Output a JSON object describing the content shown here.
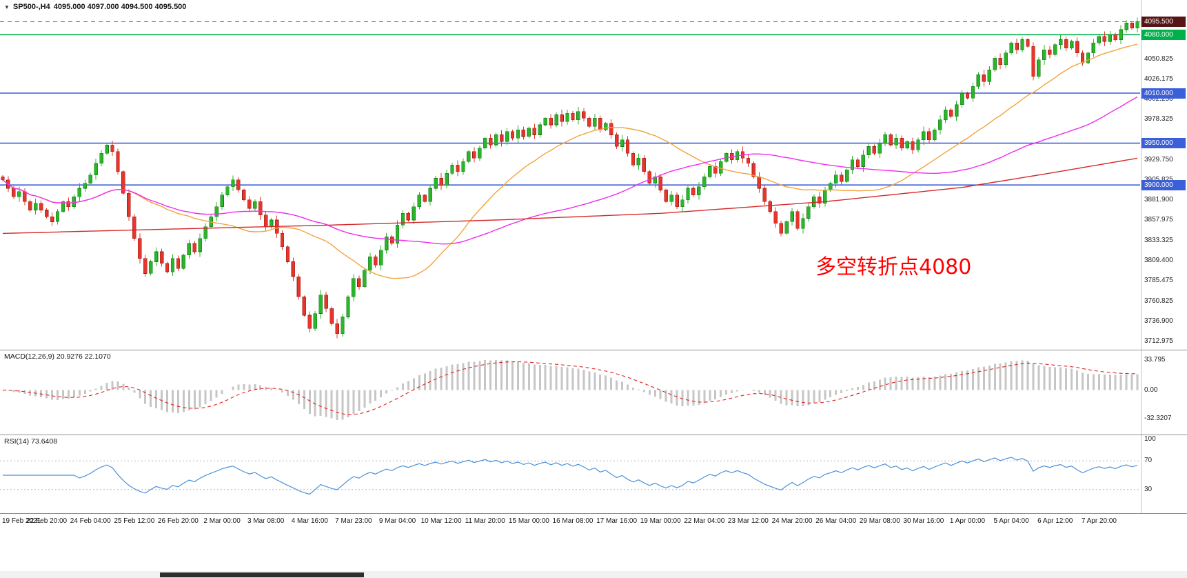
{
  "window": {
    "symbol_period": "SP500-,H4",
    "ohlc": "4095.000 4097.000 4094.500 4095.500"
  },
  "annotation": {
    "text": "多空转折点4080",
    "color": "#FF0000"
  },
  "price_axis": {
    "labels": [
      "4074.975",
      "4050.825",
      "4026.175",
      "4002.250",
      "3978.325",
      "3929.750",
      "3905.825",
      "3881.900",
      "3857.975",
      "3833.325",
      "3809.400",
      "3785.475",
      "3760.825",
      "3736.900",
      "3712.975"
    ]
  },
  "time_axis": {
    "labels": [
      "19 Feb 2021",
      "22 Feb 20:00",
      "24 Feb 04:00",
      "25 Feb 12:00",
      "26 Feb 20:00",
      "2 Mar 00:00",
      "3 Mar 08:00",
      "4 Mar 16:00",
      "7 Mar 23:00",
      "9 Mar 04:00",
      "10 Mar 12:00",
      "11 Mar 20:00",
      "15 Mar 00:00",
      "16 Mar 08:00",
      "17 Mar 16:00",
      "19 Mar 00:00",
      "22 Mar 04:00",
      "23 Mar 12:00",
      "24 Mar 20:00",
      "26 Mar 04:00",
      "29 Mar 08:00",
      "30 Mar 16:00",
      "1 Apr 00:00",
      "5 Apr 04:00",
      "6 Apr 12:00",
      "7 Apr 20:00"
    ]
  },
  "levels": [
    {
      "price": 4095.5,
      "label": "4095.500",
      "bg": "#571616",
      "line_color": "#b84a4a",
      "style": "dashed"
    },
    {
      "price": 4080.0,
      "label": "4080.000",
      "bg": "#00b14a",
      "line_color": "#00b14a",
      "style": "solid"
    },
    {
      "price": 4010.0,
      "label": "4010.000",
      "bg": "#3a5fd9",
      "line_color": "#3a5fd9",
      "style": "solid"
    },
    {
      "price": 3950.0,
      "label": "3950.000",
      "bg": "#3a5fd9",
      "line_color": "#3a5fd9",
      "style": "solid"
    },
    {
      "price": 3900.0,
      "label": "3900.000",
      "bg": "#3a5fd9",
      "line_color": "#3a5fd9",
      "style": "solid"
    }
  ],
  "macd": {
    "label": "MACD(12,26,9) 20.9276 22.1070",
    "axis_labels": [
      "33.795",
      "0.00",
      "-32.3207"
    ],
    "axis_values": [
      33.795,
      0,
      -32.3207
    ]
  },
  "rsi": {
    "label": "RSI(14) 73.6408",
    "axis_labels": [
      "100",
      "70",
      "30"
    ],
    "axis_values": [
      100,
      70,
      30
    ]
  },
  "colors": {
    "bull": "#2bb52b",
    "bull_border": "#157a15",
    "bear": "#e6352b",
    "bear_border": "#9c1f14",
    "ma_fast": "#f2a33c",
    "ma_mid": "#ee2cee",
    "ma_slow": "#d42a2a",
    "macd_hist": "#c6c6c6",
    "macd_signal": "#e02020",
    "rsi_line": "#4a90d9"
  },
  "chart_data": [
    {
      "type": "candlestick",
      "symbol": "SP500-",
      "timeframe": "H4",
      "title": "SP500-,H4 4095.000 4097.000 4094.500 4095.500",
      "ohlc_current": {
        "open": 4095.0,
        "high": 4097.0,
        "low": 4094.5,
        "close": 4095.5
      },
      "ylim": [
        3706,
        4105
      ],
      "bars_per_tick": 8,
      "open_first": 3910,
      "x_tick_labels": [
        "19 Feb 2021",
        "22 Feb 20:00",
        "24 Feb 04:00",
        "25 Feb 12:00",
        "26 Feb 20:00",
        "2 Mar 00:00",
        "3 Mar 08:00",
        "4 Mar 16:00",
        "7 Mar 23:00",
        "9 Mar 04:00",
        "10 Mar 12:00",
        "11 Mar 20:00",
        "15 Mar 00:00",
        "16 Mar 08:00",
        "17 Mar 16:00",
        "19 Mar 00:00",
        "22 Mar 04:00",
        "23 Mar 12:00",
        "24 Mar 20:00",
        "26 Mar 04:00",
        "29 Mar 08:00",
        "30 Mar 16:00",
        "1 Apr 00:00",
        "5 Apr 04:00",
        "6 Apr 12:00",
        "7 Apr 20:00"
      ],
      "closes": [
        3906,
        3896,
        3886,
        3892,
        3880,
        3870,
        3878,
        3870,
        3862,
        3856,
        3868,
        3880,
        3874,
        3886,
        3896,
        3902,
        3912,
        3926,
        3938,
        3948,
        3940,
        3916,
        3890,
        3862,
        3836,
        3812,
        3794,
        3808,
        3820,
        3806,
        3796,
        3812,
        3800,
        3816,
        3830,
        3820,
        3836,
        3850,
        3862,
        3874,
        3888,
        3898,
        3906,
        3894,
        3882,
        3872,
        3880,
        3864,
        3850,
        3858,
        3842,
        3826,
        3808,
        3790,
        3766,
        3744,
        3728,
        3746,
        3768,
        3752,
        3734,
        3722,
        3742,
        3766,
        3788,
        3778,
        3798,
        3814,
        3804,
        3822,
        3838,
        3830,
        3852,
        3866,
        3858,
        3874,
        3888,
        3880,
        3896,
        3908,
        3900,
        3914,
        3924,
        3916,
        3928,
        3940,
        3932,
        3944,
        3956,
        3948,
        3960,
        3952,
        3964,
        3956,
        3966,
        3958,
        3968,
        3960,
        3972,
        3980,
        3972,
        3984,
        3976,
        3986,
        3978,
        3988,
        3980,
        3970,
        3980,
        3966,
        3974,
        3960,
        3946,
        3954,
        3938,
        3924,
        3932,
        3916,
        3902,
        3910,
        3894,
        3880,
        3888,
        3874,
        3882,
        3896,
        3888,
        3898,
        3910,
        3922,
        3914,
        3928,
        3938,
        3930,
        3940,
        3932,
        3926,
        3910,
        3896,
        3880,
        3868,
        3854,
        3842,
        3856,
        3868,
        3848,
        3860,
        3874,
        3886,
        3878,
        3894,
        3902,
        3912,
        3904,
        3918,
        3930,
        3922,
        3936,
        3946,
        3938,
        3950,
        3960,
        3948,
        3956,
        3944,
        3952,
        3942,
        3954,
        3964,
        3954,
        3966,
        3978,
        3990,
        3982,
        3996,
        4010,
        4004,
        4018,
        4032,
        4024,
        4038,
        4052,
        4044,
        4058,
        4070,
        4062,
        4074,
        4066,
        4030,
        4050,
        4062,
        4056,
        4068,
        4074,
        4064,
        4072,
        4058,
        4046,
        4058,
        4070,
        4078,
        4072,
        4080,
        4074,
        4086,
        4094,
        4088,
        4095.5
      ],
      "horizontal_lines": [
        4095.5,
        4080,
        4010,
        3950,
        3900
      ],
      "moving_averages": [
        {
          "name": "fast",
          "type": "sma",
          "period": 24,
          "color_key": "ma_fast"
        },
        {
          "name": "medium",
          "type": "sma",
          "period": 60,
          "color_key": "ma_mid"
        },
        {
          "name": "slow",
          "type": "anchors",
          "color_key": "ma_slow",
          "points": [
            [
              0,
              3842
            ],
            [
              30,
              3847
            ],
            [
              60,
              3852
            ],
            [
              90,
              3858
            ],
            [
              120,
              3866
            ],
            [
              150,
              3880
            ],
            [
              175,
              3897
            ],
            [
              190,
              3913
            ],
            [
              207,
              3932
            ]
          ]
        }
      ]
    },
    {
      "type": "bar",
      "name": "MACD(12,26,9)",
      "current": [
        20.9276,
        22.107
      ],
      "ylim": [
        -46,
        40
      ],
      "axis_tick_values": [
        33.795,
        0,
        -32.3207
      ],
      "derived_from": "closes"
    },
    {
      "type": "line",
      "name": "RSI(14)",
      "current": 73.6408,
      "ylim": [
        0,
        100
      ],
      "guide_levels": [
        70,
        30
      ],
      "derived_from": "closes"
    }
  ]
}
